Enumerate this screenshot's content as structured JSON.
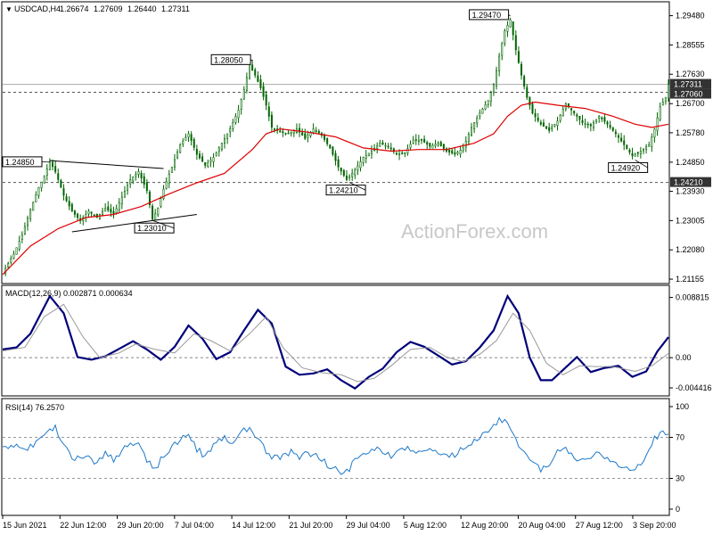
{
  "title": {
    "symbol": "USDCAD,H4",
    "open": "1.26674",
    "high": "1.27609",
    "low": "1.26440",
    "close": "1.27311"
  },
  "watermark": "ActionForex.com",
  "colors": {
    "candle": "#006400",
    "ma": "#dd0000",
    "macd": "#00007a",
    "signal": "#999999",
    "rsi": "#1e78c8",
    "grid_dash": "#555555"
  },
  "chart_data": [
    {
      "type": "candlestick",
      "panel": "price",
      "title": "USDCAD,H4",
      "ylim": [
        1.211,
        1.2975
      ],
      "y_ticks": [
        "1.29480",
        "1.28555",
        "1.27630",
        "1.26700",
        "1.25780",
        "1.24850",
        "1.23930",
        "1.23005",
        "1.22080",
        "1.21155"
      ],
      "x_ticks": [
        "15 Jun 2021",
        "22 Jun 12:00",
        "29 Jun 20:00",
        "7 Jul 04:00",
        "14 Jul 12:00",
        "21 Jul 20:00",
        "29 Jul 04:00",
        "5 Aug 12:00",
        "12 Aug 20:00",
        "20 Aug 04:00",
        "27 Aug 12:00",
        "3 Sep 20:00"
      ],
      "close_path": [
        [
          0,
          1.2135
        ],
        [
          4,
          1.2195
        ],
        [
          7,
          1.2255
        ],
        [
          10,
          1.2335
        ],
        [
          13,
          1.2405
        ],
        [
          15,
          1.244
        ],
        [
          17,
          1.2487
        ],
        [
          19,
          1.2455
        ],
        [
          22,
          1.238
        ],
        [
          25,
          1.233
        ],
        [
          28,
          1.23
        ],
        [
          31,
          1.233
        ],
        [
          34,
          1.231
        ],
        [
          37,
          1.234
        ],
        [
          40,
          1.232
        ],
        [
          43,
          1.2375
        ],
        [
          46,
          1.243
        ],
        [
          49,
          1.2455
        ],
        [
          52,
          1.2395
        ],
        [
          54,
          1.2305
        ],
        [
          56,
          1.234
        ],
        [
          58,
          1.24
        ],
        [
          61,
          1.247
        ],
        [
          64,
          1.254
        ],
        [
          67,
          1.2575
        ],
        [
          70,
          1.251
        ],
        [
          73,
          1.2475
        ],
        [
          76,
          1.25
        ],
        [
          79,
          1.2545
        ],
        [
          82,
          1.259
        ],
        [
          85,
          1.265
        ],
        [
          87,
          1.2715
        ],
        [
          89,
          1.279
        ],
        [
          91,
          1.276
        ],
        [
          93,
          1.272
        ],
        [
          95,
          1.2665
        ],
        [
          97,
          1.2595
        ],
        [
          100,
          1.258
        ],
        [
          103,
          1.2575
        ],
        [
          106,
          1.259
        ],
        [
          109,
          1.256
        ],
        [
          112,
          1.259
        ],
        [
          115,
          1.257
        ],
        [
          118,
          1.253
        ],
        [
          121,
          1.247
        ],
        [
          124,
          1.243
        ],
        [
          127,
          1.246
        ],
        [
          130,
          1.25
        ],
        [
          133,
          1.252
        ],
        [
          136,
          1.2545
        ],
        [
          139,
          1.2535
        ],
        [
          142,
          1.251
        ],
        [
          145,
          1.2515
        ],
        [
          148,
          1.2555
        ],
        [
          151,
          1.2555
        ],
        [
          154,
          1.2535
        ],
        [
          157,
          1.2545
        ],
        [
          160,
          1.252
        ],
        [
          163,
          1.251
        ],
        [
          166,
          1.253
        ],
        [
          169,
          1.2595
        ],
        [
          172,
          1.264
        ],
        [
          175,
          1.268
        ],
        [
          177,
          1.273
        ],
        [
          179,
          1.282
        ],
        [
          181,
          1.29
        ],
        [
          183,
          1.2935
        ],
        [
          185,
          1.284
        ],
        [
          187,
          1.276
        ],
        [
          189,
          1.269
        ],
        [
          191,
          1.264
        ],
        [
          194,
          1.2605
        ],
        [
          197,
          1.2585
        ],
        [
          200,
          1.2615
        ],
        [
          203,
          1.267
        ],
        [
          206,
          1.264
        ],
        [
          209,
          1.261
        ],
        [
          212,
          1.26
        ],
        [
          215,
          1.263
        ],
        [
          218,
          1.2605
        ],
        [
          221,
          1.2575
        ],
        [
          224,
          1.254
        ],
        [
          227,
          1.2505
        ],
        [
          230,
          1.252
        ],
        [
          233,
          1.254
        ],
        [
          235,
          1.259
        ],
        [
          237,
          1.266
        ],
        [
          239,
          1.269
        ],
        [
          240,
          1.2731
        ]
      ],
      "ma_path": [
        [
          0,
          1.213
        ],
        [
          10,
          1.222
        ],
        [
          20,
          1.2275
        ],
        [
          30,
          1.231
        ],
        [
          40,
          1.232
        ],
        [
          50,
          1.2345
        ],
        [
          60,
          1.2385
        ],
        [
          70,
          1.242
        ],
        [
          80,
          1.245
        ],
        [
          90,
          1.2525
        ],
        [
          95,
          1.2575
        ],
        [
          100,
          1.259
        ],
        [
          110,
          1.258
        ],
        [
          120,
          1.2565
        ],
        [
          130,
          1.253
        ],
        [
          140,
          1.252
        ],
        [
          150,
          1.2525
        ],
        [
          160,
          1.2525
        ],
        [
          170,
          1.2545
        ],
        [
          177,
          1.2575
        ],
        [
          182,
          1.263
        ],
        [
          187,
          1.2665
        ],
        [
          192,
          1.2675
        ],
        [
          200,
          1.2665
        ],
        [
          210,
          1.2655
        ],
        [
          220,
          1.263
        ],
        [
          228,
          1.2605
        ],
        [
          234,
          1.2595
        ],
        [
          240,
          1.2605
        ]
      ],
      "annotations": [
        {
          "label": "1.24850",
          "x": 17,
          "y": 1.2485
        },
        {
          "label": "1.23010",
          "x": 54,
          "y": 1.2301
        },
        {
          "label": "1.28050",
          "x": 90,
          "y": 1.2805
        },
        {
          "label": "1.24210",
          "x": 125,
          "y": 1.2421
        },
        {
          "label": "1.29470",
          "x": 183,
          "y": 1.2947
        },
        {
          "label": "1.24920",
          "x": 228,
          "y": 1.2492
        }
      ],
      "h_levels": [
        {
          "label": "1.27060",
          "value": 1.2706,
          "style": "dashed"
        },
        {
          "label": "1.24210",
          "value": 1.2421,
          "style": "dashed"
        },
        {
          "label": "1.27311",
          "value": 1.27311,
          "style": "current"
        }
      ],
      "trendlines": [
        {
          "from": [
            17,
            1.249
          ],
          "to": [
            58,
            1.2465
          ]
        },
        {
          "from": [
            25,
            1.2265
          ],
          "to": [
            70,
            1.232
          ]
        }
      ]
    },
    {
      "type": "line",
      "panel": "macd",
      "title": "MACD(12,26,9) 0.002871 0.000634",
      "ylim": [
        -0.0052,
        0.0098
      ],
      "y_ticks": [
        "0.008815",
        "0.00",
        "-0.004416"
      ],
      "series": [
        {
          "kind": "macd",
          "values": [
            [
              0,
              0.0012
            ],
            [
              5,
              0.0015
            ],
            [
              10,
              0.0035
            ],
            [
              17,
              0.009
            ],
            [
              22,
              0.0065
            ],
            [
              27,
              0.0001
            ],
            [
              32,
              -0.0003
            ],
            [
              37,
              0.0002
            ],
            [
              42,
              0.0013
            ],
            [
              47,
              0.0024
            ],
            [
              52,
              0.0012
            ],
            [
              57,
              -0.0003
            ],
            [
              62,
              0.0016
            ],
            [
              67,
              0.0047
            ],
            [
              72,
              0.0028
            ],
            [
              77,
              -0.0002
            ],
            [
              82,
              0.0008
            ],
            [
              87,
              0.004
            ],
            [
              92,
              0.007
            ],
            [
              97,
              0.005
            ],
            [
              102,
              -0.0013
            ],
            [
              107,
              -0.0025
            ],
            [
              112,
              -0.0023
            ],
            [
              117,
              -0.0017
            ],
            [
              122,
              -0.0033
            ],
            [
              127,
              -0.0045
            ],
            [
              132,
              -0.0028
            ],
            [
              137,
              -0.0016
            ],
            [
              142,
              0.0008
            ],
            [
              147,
              0.0023
            ],
            [
              152,
              0.0016
            ],
            [
              157,
              0.0003
            ],
            [
              162,
              -0.001
            ],
            [
              167,
              -0.0005
            ],
            [
              172,
              0.0015
            ],
            [
              177,
              0.004
            ],
            [
              182,
              0.009
            ],
            [
              186,
              0.0065
            ],
            [
              190,
              0.0
            ],
            [
              194,
              -0.0033
            ],
            [
              198,
              -0.0033
            ],
            [
              202,
              -0.0018
            ],
            [
              207,
              0.0001
            ],
            [
              212,
              -0.0021
            ],
            [
              217,
              -0.0015
            ],
            [
              222,
              -0.0012
            ],
            [
              227,
              -0.0028
            ],
            [
              232,
              -0.002
            ],
            [
              236,
              0.0009
            ],
            [
              240,
              0.003
            ]
          ]
        },
        {
          "kind": "signal",
          "values": [
            [
              0,
              0.001
            ],
            [
              8,
              0.0015
            ],
            [
              15,
              0.006
            ],
            [
              22,
              0.0078
            ],
            [
              29,
              0.003
            ],
            [
              35,
              0.0
            ],
            [
              42,
              0.0007
            ],
            [
              48,
              0.002
            ],
            [
              55,
              0.0012
            ],
            [
              62,
              0.0007
            ],
            [
              69,
              0.0035
            ],
            [
              75,
              0.0025
            ],
            [
              82,
              0.001
            ],
            [
              89,
              0.0035
            ],
            [
              95,
              0.006
            ],
            [
              101,
              0.0015
            ],
            [
              108,
              -0.0015
            ],
            [
              115,
              -0.0022
            ],
            [
              122,
              -0.0025
            ],
            [
              128,
              -0.0035
            ],
            [
              134,
              -0.003
            ],
            [
              140,
              -0.0012
            ],
            [
              147,
              0.0012
            ],
            [
              154,
              0.0015
            ],
            [
              160,
              0.0001
            ],
            [
              166,
              -0.0006
            ],
            [
              172,
              0.0005
            ],
            [
              178,
              0.0025
            ],
            [
              184,
              0.0065
            ],
            [
              190,
              0.004
            ],
            [
              196,
              -0.0008
            ],
            [
              202,
              -0.0025
            ],
            [
              208,
              -0.0012
            ],
            [
              214,
              -0.0013
            ],
            [
              220,
              -0.0013
            ],
            [
              228,
              -0.002
            ],
            [
              234,
              -0.0012
            ],
            [
              240,
              0.0006
            ]
          ]
        }
      ]
    },
    {
      "type": "line",
      "panel": "rsi",
      "title": "RSI(14) 76.2570",
      "ylim": [
        0,
        100
      ],
      "y_ticks": [
        "100",
        "70",
        "30",
        "0"
      ],
      "levels": [
        70,
        30
      ],
      "values": [
        [
          0,
          58
        ],
        [
          4,
          62
        ],
        [
          8,
          55
        ],
        [
          12,
          66
        ],
        [
          16,
          73
        ],
        [
          19,
          79
        ],
        [
          22,
          60
        ],
        [
          25,
          52
        ],
        [
          28,
          47
        ],
        [
          31,
          52
        ],
        [
          34,
          45
        ],
        [
          37,
          55
        ],
        [
          40,
          49
        ],
        [
          43,
          57
        ],
        [
          46,
          63
        ],
        [
          49,
          66
        ],
        [
          52,
          48
        ],
        [
          55,
          40
        ],
        [
          58,
          52
        ],
        [
          61,
          59
        ],
        [
          64,
          68
        ],
        [
          67,
          72
        ],
        [
          70,
          58
        ],
        [
          73,
          52
        ],
        [
          76,
          62
        ],
        [
          79,
          70
        ],
        [
          82,
          65
        ],
        [
          85,
          72
        ],
        [
          88,
          78
        ],
        [
          90,
          75
        ],
        [
          92,
          68
        ],
        [
          95,
          56
        ],
        [
          98,
          50
        ],
        [
          101,
          52
        ],
        [
          104,
          55
        ],
        [
          107,
          50
        ],
        [
          110,
          56
        ],
        [
          113,
          52
        ],
        [
          116,
          46
        ],
        [
          119,
          40
        ],
        [
          122,
          34
        ],
        [
          125,
          40
        ],
        [
          128,
          50
        ],
        [
          131,
          55
        ],
        [
          134,
          60
        ],
        [
          137,
          56
        ],
        [
          140,
          52
        ],
        [
          143,
          55
        ],
        [
          146,
          60
        ],
        [
          149,
          58
        ],
        [
          152,
          55
        ],
        [
          155,
          57
        ],
        [
          158,
          53
        ],
        [
          161,
          50
        ],
        [
          164,
          55
        ],
        [
          167,
          62
        ],
        [
          170,
          68
        ],
        [
          173,
          72
        ],
        [
          176,
          80
        ],
        [
          179,
          88
        ],
        [
          182,
          83
        ],
        [
          185,
          68
        ],
        [
          188,
          55
        ],
        [
          191,
          45
        ],
        [
          194,
          38
        ],
        [
          197,
          42
        ],
        [
          200,
          55
        ],
        [
          203,
          60
        ],
        [
          206,
          50
        ],
        [
          209,
          47
        ],
        [
          212,
          52
        ],
        [
          215,
          55
        ],
        [
          218,
          48
        ],
        [
          221,
          44
        ],
        [
          224,
          40
        ],
        [
          227,
          35
        ],
        [
          230,
          43
        ],
        [
          233,
          55
        ],
        [
          235,
          68
        ],
        [
          237,
          72
        ],
        [
          240,
          76
        ]
      ]
    }
  ]
}
